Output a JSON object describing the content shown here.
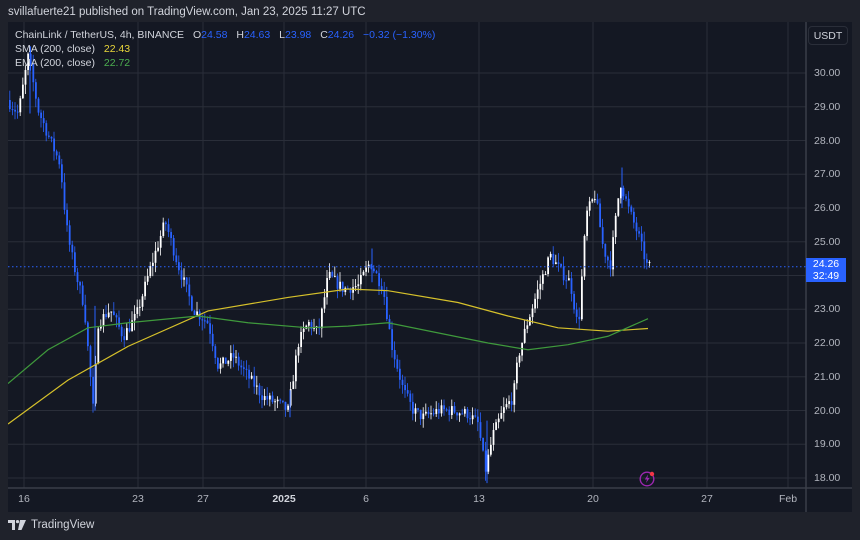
{
  "publish_bar": {
    "text": "svillafuerte21 published on TradingView.com, Jan 23, 2025 11:27 UTC"
  },
  "legend": {
    "symbol": "ChainLink / TetherUS, 4h, BINANCE",
    "open_label": "O",
    "open": "24.58",
    "high_label": "H",
    "high": "24.63",
    "low_label": "L",
    "low": "23.98",
    "close_label": "C",
    "close": "24.26",
    "change": "−0.32 (−1.30%)",
    "sma_label": "SMA (200, close)",
    "sma_value": "22.43",
    "ema_label": "EMA (200, close)",
    "ema_value": "22.72"
  },
  "currency_button": "USDT",
  "price_tag": {
    "price": "24.26",
    "countdown": "32:49"
  },
  "footer": {
    "brand": "TradingView"
  },
  "icons": {
    "logo": "tradingview-logo-icon",
    "flash": "lightning-event-icon"
  },
  "colors": {
    "background": "#141823",
    "frame": "#1f222b",
    "grid": "#2a2e39",
    "up_candle": "#ffffff",
    "down_candle": "#2962ff",
    "sma": "#d6c12b",
    "ema": "#3f9a3c",
    "price_line": "#2962ff",
    "flash": "#9c27b0"
  },
  "chart_data": {
    "type": "candlestick",
    "title": "ChainLink / TetherUS, 4h, BINANCE",
    "symbol": "LINKUSDT",
    "interval": "4h",
    "ohlc_last": {
      "open": 24.58,
      "high": 24.63,
      "low": 23.98,
      "close": 24.26,
      "change": -0.32,
      "change_pct": -1.3
    },
    "y_axis": {
      "label": "USDT",
      "ticks": [
        "30.00",
        "29.00",
        "28.00",
        "27.00",
        "26.00",
        "25.00",
        "24.00",
        "23.00",
        "22.00",
        "21.00",
        "20.00",
        "19.00",
        "18.00"
      ],
      "visible_ticks": [
        "30.00",
        "29.00",
        "28.00",
        "27.00",
        "26.00",
        "25.00",
        "23.00",
        "22.00",
        "21.00",
        "20.00",
        "19.00",
        "18.00"
      ],
      "range": [
        17.7,
        31.2
      ]
    },
    "x_axis": {
      "ticks": [
        "16",
        "23",
        "27",
        "2025",
        "6",
        "13",
        "20",
        "27",
        "Feb"
      ]
    },
    "grid": true,
    "series": [
      {
        "name": "SMA (200, close)",
        "type": "line",
        "last": 22.43,
        "points": [
          [
            0,
            19.6
          ],
          [
            60,
            20.9
          ],
          [
            120,
            21.9
          ],
          [
            200,
            22.95
          ],
          [
            280,
            23.35
          ],
          [
            340,
            23.6
          ],
          [
            380,
            23.55
          ],
          [
            450,
            23.2
          ],
          [
            500,
            22.8
          ],
          [
            550,
            22.45
          ],
          [
            600,
            22.35
          ],
          [
            640,
            22.43
          ]
        ]
      },
      {
        "name": "EMA (200, close)",
        "type": "line",
        "last": 22.72,
        "points": [
          [
            0,
            20.8
          ],
          [
            40,
            21.8
          ],
          [
            80,
            22.45
          ],
          [
            120,
            22.6
          ],
          [
            190,
            22.8
          ],
          [
            240,
            22.6
          ],
          [
            300,
            22.45
          ],
          [
            340,
            22.5
          ],
          [
            380,
            22.6
          ],
          [
            430,
            22.3
          ],
          [
            480,
            22.0
          ],
          [
            520,
            21.8
          ],
          [
            560,
            21.95
          ],
          [
            600,
            22.2
          ],
          [
            640,
            22.72
          ]
        ]
      }
    ],
    "price_points_approx": [
      [
        "Dec 15",
        29.2
      ],
      [
        "Dec 16",
        30.5
      ],
      [
        "Dec 17",
        28.6
      ],
      [
        "Dec 18",
        27.0
      ],
      [
        "Dec 19",
        24.8
      ],
      [
        "Dec 20",
        20.0
      ],
      [
        "Dec 21",
        22.5
      ],
      [
        "Dec 22",
        22.2
      ],
      [
        "Dec 23",
        23.2
      ],
      [
        "Dec 25",
        25.6
      ],
      [
        "Dec 27",
        23.0
      ],
      [
        "Dec 29",
        21.0
      ],
      [
        "Dec 31",
        20.0
      ],
      [
        "Jan 2",
        22.3
      ],
      [
        "Jan 3",
        24.0
      ],
      [
        "Jan 5",
        23.8
      ],
      [
        "Jan 6",
        24.4
      ],
      [
        "Jan 8",
        21.0
      ],
      [
        "Jan 9",
        20.0
      ],
      [
        "Jan 11",
        20.0
      ],
      [
        "Jan 13",
        18.0
      ],
      [
        "Jan 15",
        20.3
      ],
      [
        "Jan 16",
        22.5
      ],
      [
        "Jan 17",
        24.5
      ],
      [
        "Jan 19",
        22.4
      ],
      [
        "Jan 20",
        26.4
      ],
      [
        "Jan 21",
        24.2
      ],
      [
        "Jan 22",
        27.0
      ],
      [
        "Jan 23",
        24.26
      ]
    ],
    "last_price": 24.26,
    "candle_countdown": "32:49"
  }
}
